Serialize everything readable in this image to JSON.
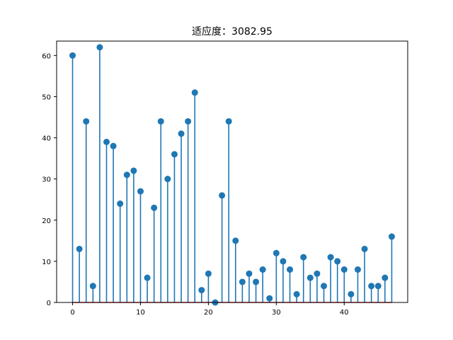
{
  "chart_data": {
    "type": "stem",
    "title": "适应度：3082.95",
    "xlabel": "",
    "ylabel": "",
    "x": [
      0,
      1,
      2,
      3,
      4,
      5,
      6,
      7,
      8,
      9,
      10,
      11,
      12,
      13,
      14,
      15,
      16,
      17,
      18,
      19,
      20,
      21,
      22,
      23,
      24,
      25,
      26,
      27,
      28,
      29,
      30,
      31,
      32,
      33,
      34,
      35,
      36,
      37,
      38,
      39,
      40,
      41,
      42,
      43,
      44,
      45,
      46,
      47
    ],
    "values": [
      60,
      13,
      44,
      4,
      62,
      39,
      38,
      24,
      31,
      32,
      27,
      6,
      23,
      44,
      30,
      36,
      41,
      44,
      51,
      3,
      7,
      0,
      26,
      44,
      15,
      5,
      7,
      5,
      8,
      1,
      12,
      10,
      8,
      2,
      11,
      6,
      7,
      4,
      11,
      10,
      8,
      2,
      8,
      13,
      4,
      4,
      6,
      16
    ],
    "xlim": [
      -2.35,
      49.35
    ],
    "ylim": [
      0,
      63.5
    ],
    "xticks": [
      0,
      10,
      20,
      30,
      40
    ],
    "yticks": [
      0,
      10,
      20,
      30,
      40,
      50,
      60
    ],
    "grid": false,
    "colors": {
      "stem": "#1f77b4",
      "marker": "#1f77b4",
      "baseline": "#d62728",
      "axes": "#000000"
    }
  }
}
